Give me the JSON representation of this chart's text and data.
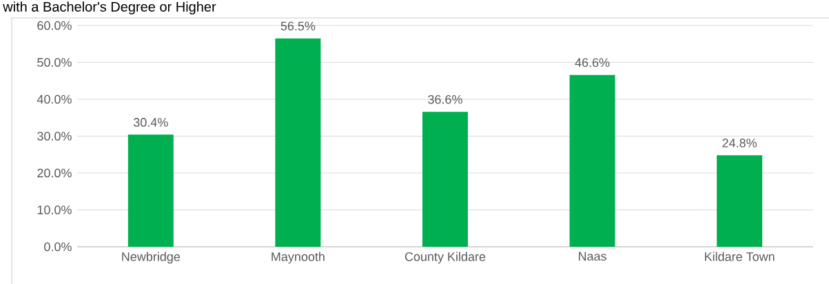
{
  "chart_data": {
    "type": "bar",
    "title": "with a Bachelor's Degree or Higher",
    "categories": [
      "Newbridge",
      "Maynooth",
      "County Kildare",
      "Naas",
      "Kildare Town"
    ],
    "values": [
      30.4,
      56.5,
      36.6,
      46.6,
      24.8
    ],
    "value_labels": [
      "30.4%",
      "56.5%",
      "36.6%",
      "46.6%",
      "24.8%"
    ],
    "color": "#00b050",
    "ylim": [
      0,
      60
    ],
    "yticks": [
      {
        "value": 0,
        "label": "0.0%"
      },
      {
        "value": 10,
        "label": "10.0%"
      },
      {
        "value": 20,
        "label": "20.0%"
      },
      {
        "value": 30,
        "label": "30.0%"
      },
      {
        "value": 40,
        "label": "40.0%"
      },
      {
        "value": 50,
        "label": "50.0%"
      },
      {
        "value": 60,
        "label": "60.0%"
      }
    ],
    "grid": "y"
  }
}
